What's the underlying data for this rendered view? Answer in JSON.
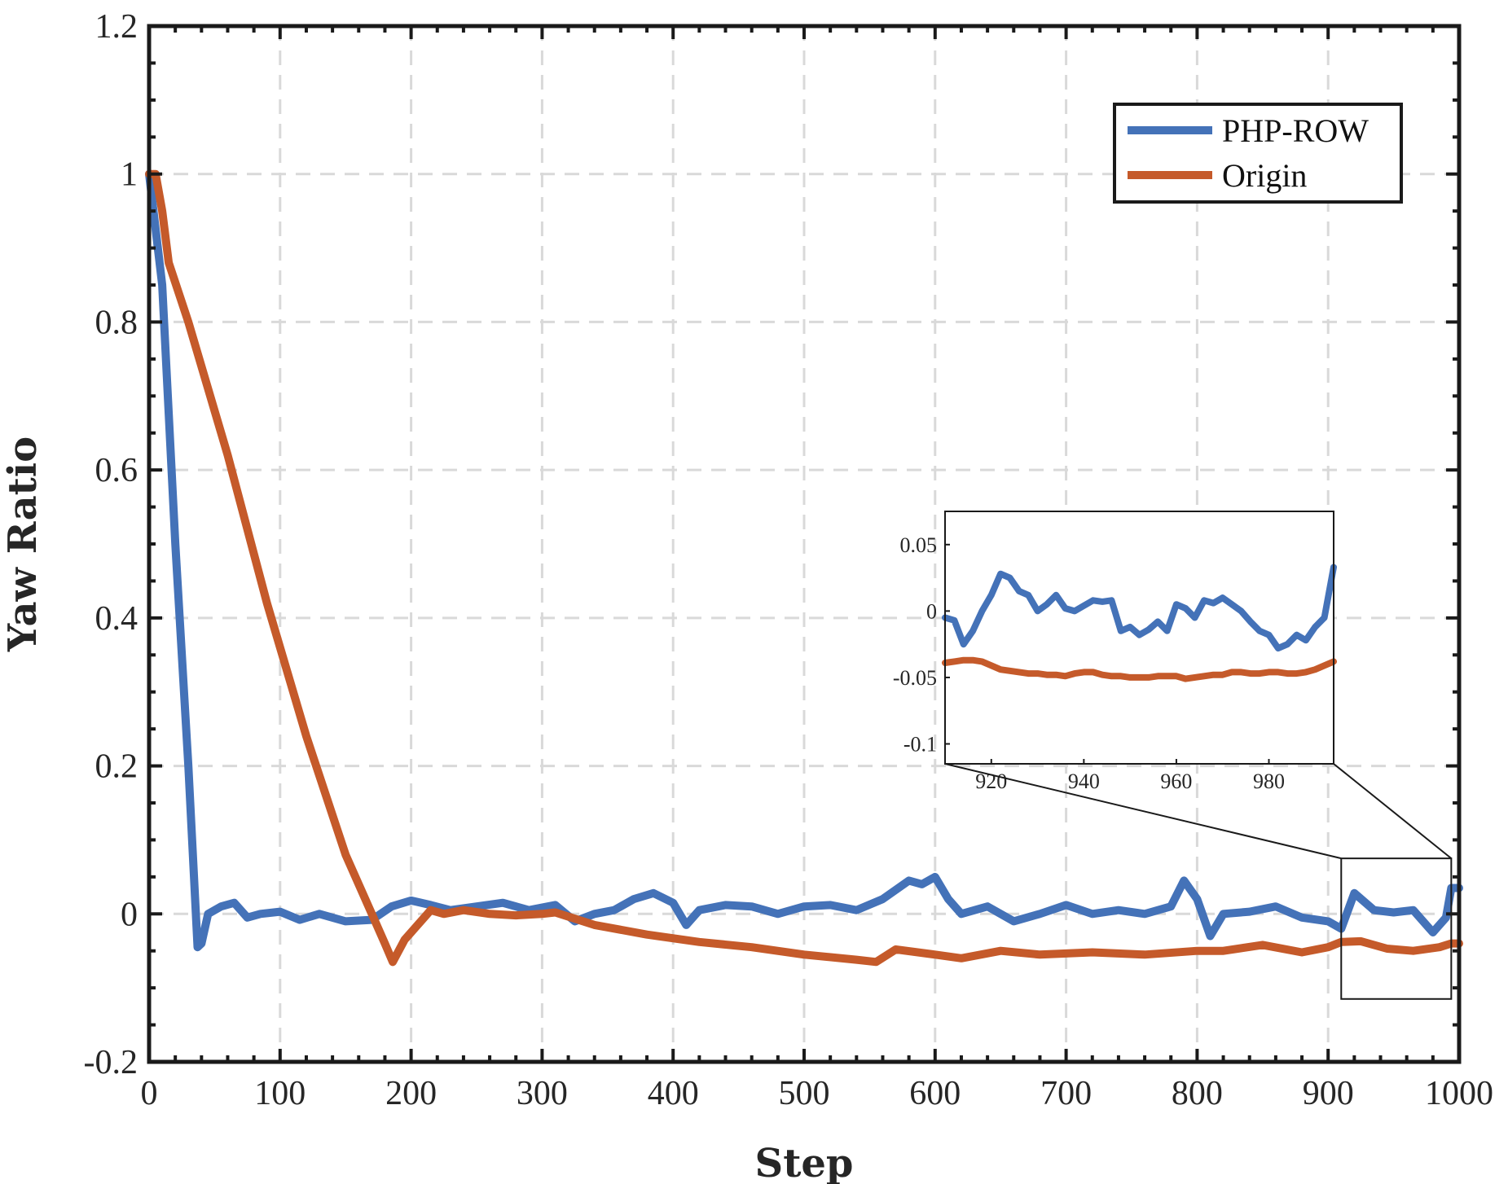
{
  "chart_data": [
    {
      "type": "line",
      "title": "",
      "xlabel": "Step",
      "ylabel": "Yaw Ratio",
      "xlim": [
        0,
        1000
      ],
      "ylim": [
        -0.2,
        1.2
      ],
      "xticks": [
        0,
        100,
        200,
        300,
        400,
        500,
        600,
        700,
        800,
        900,
        1000
      ],
      "xtick_labels": [
        "0",
        "100",
        "200",
        "300",
        "400",
        "500",
        "600",
        "700",
        "800",
        "900",
        "1000"
      ],
      "yticks": [
        -0.2,
        0,
        0.2,
        0.4,
        0.6,
        0.8,
        1,
        1.2
      ],
      "ytick_labels": [
        "-0.2",
        "0",
        "0.2",
        "0.4",
        "0.6",
        "0.8",
        "1",
        "1.2"
      ],
      "grid": true,
      "legend_position": "top-right",
      "zoom_box": {
        "x": [
          910,
          994
        ],
        "y": [
          -0.115,
          0.075
        ]
      },
      "series": [
        {
          "name": "PHP-ROW",
          "color": "#4472b8",
          "x": [
            0,
            10,
            20,
            30,
            37,
            40,
            45,
            55,
            65,
            75,
            85,
            100,
            115,
            130,
            150,
            170,
            185,
            200,
            215,
            230,
            250,
            270,
            290,
            310,
            325,
            340,
            355,
            370,
            385,
            400,
            410,
            420,
            440,
            460,
            480,
            500,
            520,
            540,
            560,
            580,
            590,
            600,
            610,
            620,
            640,
            660,
            680,
            700,
            720,
            740,
            760,
            780,
            790,
            800,
            810,
            820,
            840,
            860,
            880,
            900,
            910,
            920,
            935,
            950,
            965,
            980,
            990,
            994,
            1000
          ],
          "y": [
            1.0,
            0.85,
            0.5,
            0.2,
            -0.045,
            -0.04,
            0.0,
            0.01,
            0.015,
            -0.005,
            0.0,
            0.003,
            -0.008,
            0.0,
            -0.01,
            -0.008,
            0.01,
            0.018,
            0.012,
            0.005,
            0.01,
            0.015,
            0.005,
            0.012,
            -0.01,
            0.0,
            0.005,
            0.02,
            0.028,
            0.015,
            -0.015,
            0.005,
            0.012,
            0.01,
            0.0,
            0.01,
            0.012,
            0.005,
            0.02,
            0.045,
            0.04,
            0.05,
            0.02,
            0.0,
            0.01,
            -0.01,
            0.0,
            0.012,
            0.0,
            0.005,
            0.0,
            0.01,
            0.045,
            0.02,
            -0.03,
            0.0,
            0.003,
            0.01,
            -0.005,
            -0.01,
            -0.02,
            0.028,
            0.005,
            0.002,
            0.005,
            -0.025,
            -0.005,
            0.035,
            0.035
          ]
        },
        {
          "name": "Origin",
          "color": "#c55a2a",
          "x": [
            0,
            5,
            10,
            15,
            30,
            60,
            90,
            120,
            150,
            170,
            180,
            186,
            195,
            205,
            215,
            225,
            240,
            260,
            280,
            300,
            310,
            340,
            380,
            420,
            460,
            500,
            540,
            555,
            570,
            600,
            620,
            650,
            680,
            720,
            760,
            800,
            820,
            850,
            880,
            900,
            910,
            925,
            945,
            965,
            985,
            994,
            1000
          ],
          "y": [
            1.0,
            1.0,
            0.95,
            0.88,
            0.8,
            0.62,
            0.42,
            0.24,
            0.08,
            0.0,
            -0.04,
            -0.065,
            -0.035,
            -0.015,
            0.005,
            0.0,
            0.005,
            0.0,
            -0.002,
            0.0,
            0.002,
            -0.015,
            -0.028,
            -0.038,
            -0.045,
            -0.055,
            -0.062,
            -0.065,
            -0.048,
            -0.055,
            -0.06,
            -0.05,
            -0.055,
            -0.052,
            -0.055,
            -0.05,
            -0.05,
            -0.042,
            -0.052,
            -0.045,
            -0.038,
            -0.037,
            -0.047,
            -0.05,
            -0.045,
            -0.04,
            -0.04
          ]
        }
      ]
    },
    {
      "type": "line",
      "title": "",
      "xlabel": "",
      "ylabel": "",
      "xlim": [
        910,
        994
      ],
      "ylim": [
        -0.115,
        0.075
      ],
      "xticks": [
        920,
        940,
        960,
        980
      ],
      "xtick_labels": [
        "920",
        "940",
        "960",
        "980"
      ],
      "yticks": [
        0.05,
        0,
        -0.05,
        -0.1
      ],
      "ytick_labels": [
        "0.05",
        "0",
        "-0.05",
        "-0.1"
      ],
      "grid": false,
      "series": [
        {
          "name": "PHP-ROW",
          "color": "#4472b8",
          "x": [
            910,
            912,
            914,
            916,
            918,
            920,
            922,
            924,
            926,
            928,
            930,
            932,
            934,
            936,
            938,
            940,
            942,
            944,
            946,
            948,
            950,
            952,
            954,
            956,
            958,
            960,
            962,
            964,
            966,
            968,
            970,
            972,
            974,
            976,
            978,
            980,
            982,
            984,
            986,
            988,
            990,
            992,
            994
          ],
          "y": [
            -0.005,
            -0.007,
            -0.025,
            -0.015,
            0.0,
            0.012,
            0.028,
            0.025,
            0.015,
            0.012,
            0.0,
            0.005,
            0.012,
            0.002,
            0.0,
            0.004,
            0.008,
            0.007,
            0.008,
            -0.015,
            -0.012,
            -0.018,
            -0.014,
            -0.008,
            -0.015,
            0.005,
            0.002,
            -0.005,
            0.008,
            0.006,
            0.01,
            0.005,
            0.0,
            -0.008,
            -0.015,
            -0.018,
            -0.028,
            -0.025,
            -0.018,
            -0.022,
            -0.012,
            -0.005,
            0.033
          ]
        },
        {
          "name": "Origin",
          "color": "#c55a2a",
          "x": [
            910,
            912,
            914,
            916,
            918,
            920,
            922,
            924,
            926,
            928,
            930,
            932,
            934,
            936,
            938,
            940,
            942,
            944,
            946,
            948,
            950,
            952,
            954,
            956,
            958,
            960,
            962,
            964,
            966,
            968,
            970,
            972,
            974,
            976,
            978,
            980,
            982,
            984,
            986,
            988,
            990,
            992,
            994
          ],
          "y": [
            -0.039,
            -0.038,
            -0.037,
            -0.037,
            -0.038,
            -0.041,
            -0.044,
            -0.045,
            -0.046,
            -0.047,
            -0.047,
            -0.048,
            -0.048,
            -0.049,
            -0.047,
            -0.046,
            -0.046,
            -0.048,
            -0.049,
            -0.049,
            -0.05,
            -0.05,
            -0.05,
            -0.049,
            -0.049,
            -0.049,
            -0.051,
            -0.05,
            -0.049,
            -0.048,
            -0.048,
            -0.046,
            -0.046,
            -0.047,
            -0.047,
            -0.046,
            -0.046,
            -0.047,
            -0.047,
            -0.046,
            -0.044,
            -0.041,
            -0.038
          ]
        }
      ]
    }
  ]
}
